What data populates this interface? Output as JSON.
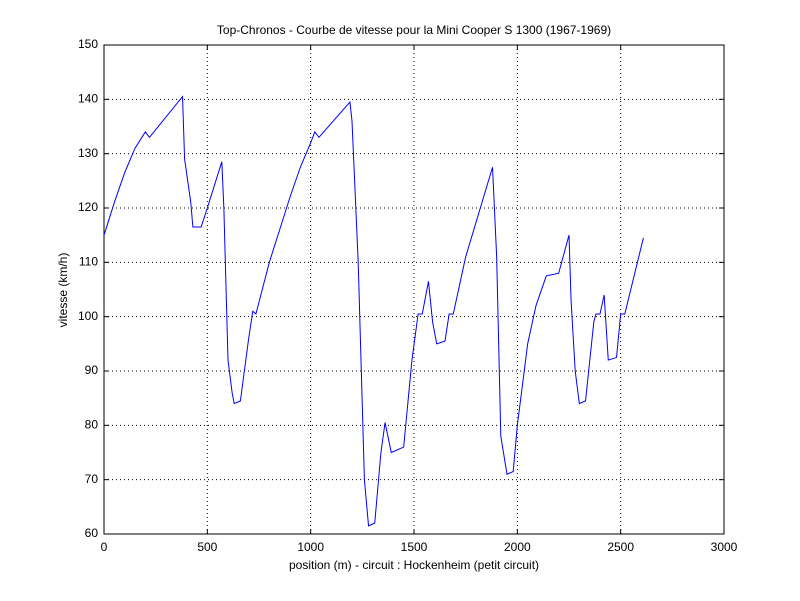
{
  "chart_data": {
    "type": "line",
    "title": "Top-Chronos - Courbe de vitesse pour la Mini Cooper S 1300 (1967-1969)",
    "x_label": "position (m) - circuit : Hockenheim (petit circuit)",
    "y_label": "vitesse (km/h)",
    "x": [
      0,
      50,
      100,
      150,
      200,
      220,
      380,
      390,
      420,
      430,
      470,
      500,
      570,
      580,
      600,
      620,
      630,
      660,
      700,
      720,
      735,
      800,
      850,
      900,
      950,
      1000,
      1020,
      1040,
      1190,
      1200,
      1230,
      1260,
      1280,
      1310,
      1340,
      1360,
      1390,
      1450,
      1490,
      1520,
      1540,
      1570,
      1590,
      1610,
      1650,
      1670,
      1690,
      1750,
      1880,
      1900,
      1920,
      1950,
      1980,
      2000,
      2050,
      2090,
      2140,
      2200,
      2250,
      2260,
      2280,
      2300,
      2330,
      2370,
      2380,
      2400,
      2420,
      2440,
      2480,
      2500,
      2520,
      2610
    ],
    "values": [
      115,
      121,
      126.5,
      131,
      134,
      133,
      140.5,
      129,
      121,
      116.5,
      116.5,
      120,
      128.5,
      120,
      92,
      86,
      84,
      84.5,
      96,
      101,
      100.5,
      110,
      116,
      122,
      127.5,
      132,
      134,
      133,
      139.5,
      136,
      110,
      70,
      61.5,
      62,
      75,
      80.5,
      75,
      76,
      92,
      100.5,
      100.5,
      106.5,
      99,
      95,
      95.5,
      100.5,
      100.5,
      111,
      127.5,
      111,
      78,
      71,
      71.5,
      80,
      95,
      102,
      107.5,
      108,
      115,
      103,
      90,
      84,
      84.5,
      99,
      100.5,
      100.5,
      104,
      92,
      92.5,
      100.5,
      100.5,
      114.5
    ],
    "color": "#0000ff",
    "xlim": [
      0,
      3000
    ],
    "xticks": [
      0,
      500,
      1000,
      1500,
      2000,
      2500,
      3000
    ],
    "ylim": [
      60,
      150
    ],
    "yticks": [
      60,
      70,
      80,
      90,
      100,
      110,
      120,
      130,
      140,
      150
    ],
    "grid": true
  }
}
